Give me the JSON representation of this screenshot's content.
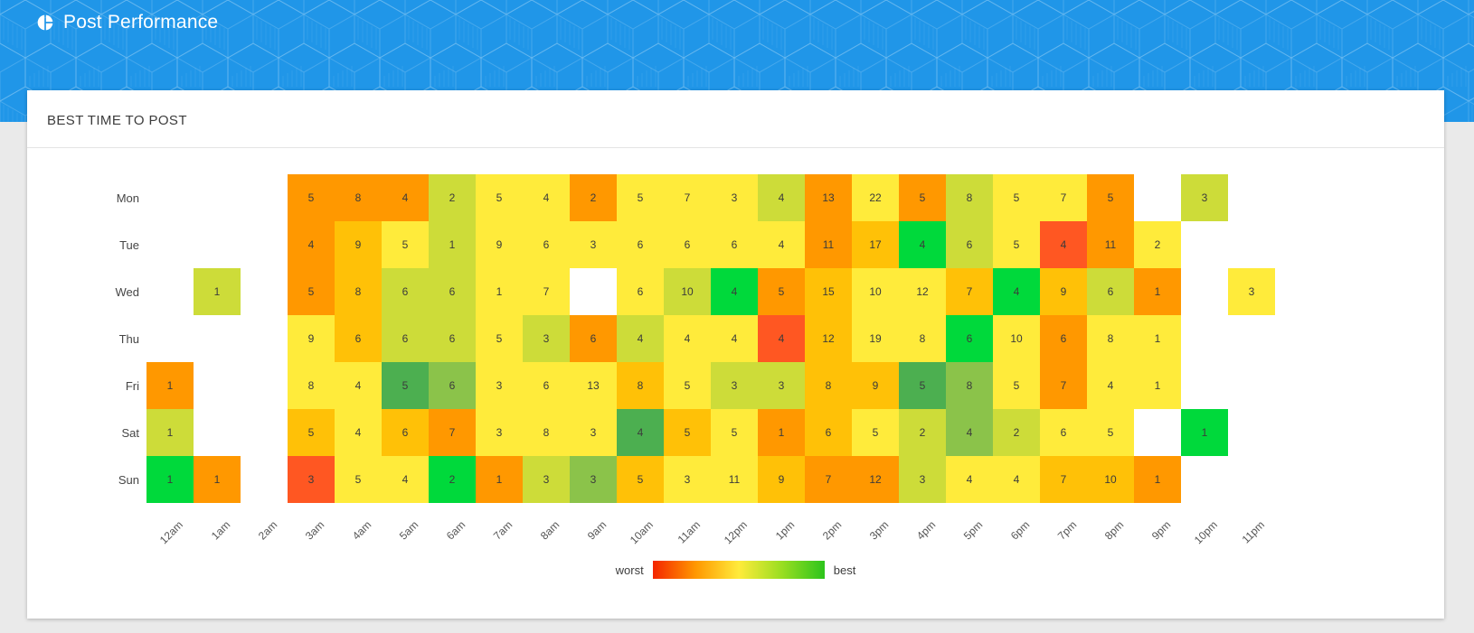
{
  "header": {
    "title": "Post Performance",
    "icon": "pie-chart-icon",
    "bg_color": "#2096e8"
  },
  "card": {
    "title": "BEST TIME TO POST"
  },
  "chart_data": {
    "type": "heatmap",
    "title": "BEST TIME TO POST",
    "x_labels": [
      "12am",
      "1am",
      "2am",
      "3am",
      "4am",
      "5am",
      "6am",
      "7am",
      "8am",
      "9am",
      "10am",
      "11am",
      "12pm",
      "1pm",
      "2pm",
      "3pm",
      "4pm",
      "5pm",
      "6pm",
      "7pm",
      "8pm",
      "9pm",
      "10pm",
      "11pm"
    ],
    "y_labels": [
      "Mon",
      "Tue",
      "Wed",
      "Thu",
      "Fri",
      "Sat",
      "Sun"
    ],
    "palette": {
      "RO": "#ff5722",
      "O": "#ff9800",
      "A": "#ffc107",
      "Y": "#ffeb3b",
      "YG": "#cddc39",
      "LG": "#8bc34a",
      "G": "#4caf50",
      "BG": "#00d93b"
    },
    "cells": [
      [
        null,
        null,
        null,
        [
          5,
          "O"
        ],
        [
          8,
          "O"
        ],
        [
          4,
          "O"
        ],
        [
          2,
          "YG"
        ],
        [
          5,
          "Y"
        ],
        [
          4,
          "Y"
        ],
        [
          2,
          "O"
        ],
        [
          5,
          "Y"
        ],
        [
          7,
          "Y"
        ],
        [
          3,
          "Y"
        ],
        [
          4,
          "YG"
        ],
        [
          13,
          "O"
        ],
        [
          22,
          "Y"
        ],
        [
          5,
          "O"
        ],
        [
          8,
          "YG"
        ],
        [
          5,
          "Y"
        ],
        [
          7,
          "Y"
        ],
        [
          5,
          "O"
        ],
        null,
        [
          3,
          "YG"
        ],
        null
      ],
      [
        null,
        null,
        null,
        [
          4,
          "O"
        ],
        [
          9,
          "A"
        ],
        [
          5,
          "Y"
        ],
        [
          1,
          "YG"
        ],
        [
          9,
          "Y"
        ],
        [
          6,
          "Y"
        ],
        [
          3,
          "Y"
        ],
        [
          6,
          "Y"
        ],
        [
          6,
          "Y"
        ],
        [
          6,
          "Y"
        ],
        [
          4,
          "Y"
        ],
        [
          11,
          "O"
        ],
        [
          17,
          "A"
        ],
        [
          4,
          "BG"
        ],
        [
          6,
          "YG"
        ],
        [
          5,
          "Y"
        ],
        [
          4,
          "RO"
        ],
        [
          11,
          "O"
        ],
        [
          2,
          "Y"
        ],
        null,
        null
      ],
      [
        null,
        [
          1,
          "YG"
        ],
        null,
        [
          5,
          "O"
        ],
        [
          8,
          "A"
        ],
        [
          6,
          "YG"
        ],
        [
          6,
          "YG"
        ],
        [
          1,
          "Y"
        ],
        [
          7,
          "Y"
        ],
        null,
        [
          6,
          "Y"
        ],
        [
          10,
          "YG"
        ],
        [
          4,
          "BG"
        ],
        [
          5,
          "O"
        ],
        [
          15,
          "A"
        ],
        [
          10,
          "Y"
        ],
        [
          12,
          "Y"
        ],
        [
          7,
          "A"
        ],
        [
          4,
          "BG"
        ],
        [
          9,
          "A"
        ],
        [
          6,
          "YG"
        ],
        [
          1,
          "O"
        ],
        null,
        [
          3,
          "Y"
        ]
      ],
      [
        null,
        null,
        null,
        [
          9,
          "Y"
        ],
        [
          6,
          "A"
        ],
        [
          6,
          "YG"
        ],
        [
          6,
          "YG"
        ],
        [
          5,
          "Y"
        ],
        [
          3,
          "YG"
        ],
        [
          6,
          "O"
        ],
        [
          4,
          "YG"
        ],
        [
          4,
          "Y"
        ],
        [
          4,
          "Y"
        ],
        [
          4,
          "RO"
        ],
        [
          12,
          "A"
        ],
        [
          19,
          "Y"
        ],
        [
          8,
          "Y"
        ],
        [
          6,
          "BG"
        ],
        [
          10,
          "Y"
        ],
        [
          6,
          "O"
        ],
        [
          8,
          "Y"
        ],
        [
          1,
          "Y"
        ],
        null,
        null
      ],
      [
        [
          1,
          "O"
        ],
        null,
        null,
        [
          8,
          "Y"
        ],
        [
          4,
          "Y"
        ],
        [
          5,
          "G"
        ],
        [
          6,
          "LG"
        ],
        [
          3,
          "Y"
        ],
        [
          6,
          "Y"
        ],
        [
          13,
          "Y"
        ],
        [
          8,
          "A"
        ],
        [
          5,
          "Y"
        ],
        [
          3,
          "YG"
        ],
        [
          3,
          "YG"
        ],
        [
          8,
          "A"
        ],
        [
          9,
          "A"
        ],
        [
          5,
          "G"
        ],
        [
          8,
          "LG"
        ],
        [
          5,
          "Y"
        ],
        [
          7,
          "O"
        ],
        [
          4,
          "Y"
        ],
        [
          1,
          "Y"
        ],
        null,
        null
      ],
      [
        [
          1,
          "YG"
        ],
        null,
        null,
        [
          5,
          "A"
        ],
        [
          4,
          "Y"
        ],
        [
          6,
          "A"
        ],
        [
          7,
          "O"
        ],
        [
          3,
          "Y"
        ],
        [
          8,
          "Y"
        ],
        [
          3,
          "Y"
        ],
        [
          4,
          "G"
        ],
        [
          5,
          "A"
        ],
        [
          5,
          "Y"
        ],
        [
          1,
          "O"
        ],
        [
          6,
          "A"
        ],
        [
          5,
          "Y"
        ],
        [
          2,
          "YG"
        ],
        [
          4,
          "LG"
        ],
        [
          2,
          "YG"
        ],
        [
          6,
          "Y"
        ],
        [
          5,
          "Y"
        ],
        null,
        [
          1,
          "BG"
        ],
        null
      ],
      [
        [
          1,
          "BG"
        ],
        [
          1,
          "O"
        ],
        null,
        [
          3,
          "RO"
        ],
        [
          5,
          "Y"
        ],
        [
          4,
          "Y"
        ],
        [
          2,
          "BG"
        ],
        [
          1,
          "O"
        ],
        [
          3,
          "YG"
        ],
        [
          3,
          "LG"
        ],
        [
          5,
          "A"
        ],
        [
          3,
          "Y"
        ],
        [
          11,
          "Y"
        ],
        [
          9,
          "A"
        ],
        [
          7,
          "O"
        ],
        [
          12,
          "O"
        ],
        [
          3,
          "YG"
        ],
        [
          4,
          "Y"
        ],
        [
          4,
          "Y"
        ],
        [
          7,
          "A"
        ],
        [
          10,
          "A"
        ],
        [
          1,
          "O"
        ],
        null,
        null
      ]
    ],
    "legend": {
      "left_label": "worst",
      "right_label": "best",
      "gradient": [
        "#f42500",
        "#ff9800",
        "#ffeb3b",
        "#9ade21",
        "#2cc41c"
      ],
      "position": "bottom-center"
    },
    "grid": "off"
  }
}
